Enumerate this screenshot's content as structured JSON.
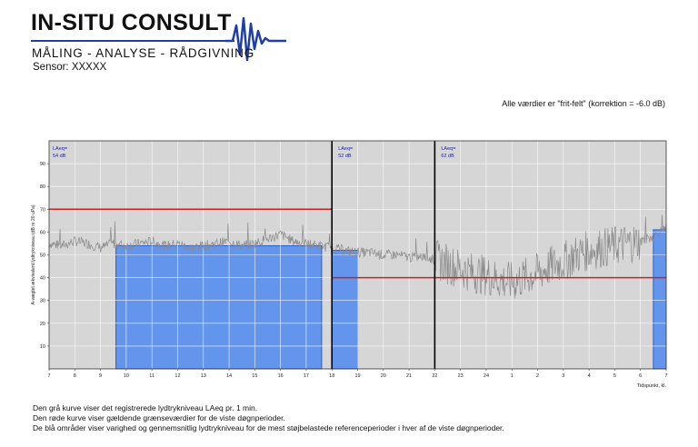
{
  "header": {
    "brand": "IN-SITU CONSULT",
    "tagline": "MÅLING - ANALYSE - RÅDGIVNING",
    "sensor": "Sensor: XXXXX",
    "logo_icon": "waveform-icon",
    "brand_color": "#1f3fa8"
  },
  "note": "Alle værdier er \"frit-felt\" (korrektion = -6.0 dB)",
  "chart_data": {
    "type": "line",
    "xlabel": "Tidspunkt, kl.",
    "ylabel": "A-vægtet ækvivalent lydtrykniveau (dB re 20 uPa)",
    "x_range": [
      7,
      31
    ],
    "ylim": [
      0,
      100
    ],
    "x_ticks": [
      "7",
      "8",
      "9",
      "10",
      "11",
      "12",
      "13",
      "14",
      "15",
      "16",
      "17",
      "18",
      "19",
      "20",
      "21",
      "22",
      "23",
      "24",
      "1",
      "2",
      "3",
      "4",
      "5",
      "6",
      "7"
    ],
    "y_ticks": [
      10,
      20,
      30,
      40,
      50,
      60,
      70,
      80,
      90
    ],
    "grid": true,
    "periods": [
      {
        "start": 7,
        "end": 18,
        "label": "LAeq=",
        "value_label": "54 dB",
        "limit": 70
      },
      {
        "start": 18,
        "end": 22,
        "label": "LAeq=",
        "value_label": "52 dB",
        "limit": 40
      },
      {
        "start": 22,
        "end": 31,
        "label": "LAeq=",
        "value_label": "62 dB",
        "limit": 40
      }
    ],
    "blue_areas": [
      {
        "start": 9.6,
        "end": 17.6,
        "value": 54
      },
      {
        "start": 18.0,
        "end": 19.0,
        "value": 52
      },
      {
        "start": 30.5,
        "end": 31.0,
        "value": 61
      }
    ],
    "series": [
      {
        "x": [
          7,
          7.5,
          8,
          8.5,
          9,
          9.5,
          10,
          10.5,
          11,
          11.5,
          12,
          12.5,
          13,
          13.5,
          14,
          14.5,
          15,
          15.5,
          16,
          16.5,
          17,
          17.5,
          18,
          18.5,
          19,
          19.5,
          20,
          20.5,
          21,
          21.5,
          22,
          22.5,
          23,
          23.5,
          24,
          24.5,
          25,
          25.5,
          26,
          26.5,
          27,
          27.5,
          28,
          28.5,
          29,
          29.5,
          30,
          30.5,
          31
        ],
        "values": [
          55,
          54,
          56,
          55,
          53,
          55,
          54,
          55,
          56,
          54,
          55,
          53,
          54,
          55,
          56,
          54,
          55,
          57,
          59,
          56,
          55,
          54,
          53,
          52,
          51,
          51,
          50,
          50,
          49,
          49,
          48,
          46,
          44,
          42,
          41,
          39,
          38,
          40,
          42,
          45,
          47,
          50,
          52,
          53,
          54,
          55,
          56,
          58,
          62
        ]
      }
    ],
    "colors": {
      "background": "#d6d6d6",
      "blue_area": "#6495ed",
      "blue_border": "#2f5fc8",
      "limit": "#cc2222",
      "trace": "#8a8a8a",
      "divider": "#000000",
      "label_blue": "#1a1ab0"
    }
  },
  "footer": [
    "Den grå kurve viser det registrerede lydtrykniveau LAeq pr. 1 min.",
    "Den røde kurve viser gældende grænseværdier for de viste døgnperioder.",
    "De blå områder viser varighed og gennemsnitlig lydtrykniveau for de mest støjbelastede referenceperioder i hver af de viste døgnperioder."
  ]
}
